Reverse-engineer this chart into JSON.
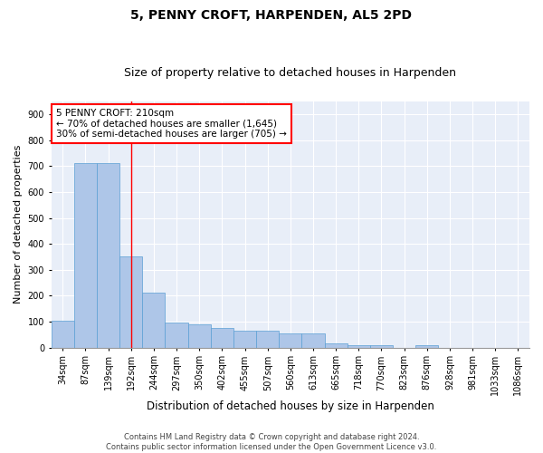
{
  "title": "5, PENNY CROFT, HARPENDEN, AL5 2PD",
  "subtitle": "Size of property relative to detached houses in Harpenden",
  "xlabel": "Distribution of detached houses by size in Harpenden",
  "ylabel": "Number of detached properties",
  "categories": [
    "34sqm",
    "87sqm",
    "139sqm",
    "192sqm",
    "244sqm",
    "297sqm",
    "350sqm",
    "402sqm",
    "455sqm",
    "507sqm",
    "560sqm",
    "613sqm",
    "665sqm",
    "718sqm",
    "770sqm",
    "823sqm",
    "876sqm",
    "928sqm",
    "981sqm",
    "1033sqm",
    "1086sqm"
  ],
  "values": [
    105,
    710,
    710,
    350,
    210,
    95,
    90,
    75,
    65,
    65,
    55,
    55,
    15,
    10,
    10,
    0,
    10,
    0,
    0,
    0,
    0
  ],
  "bar_color": "#aec6e8",
  "bar_edge_color": "#5a9fd4",
  "vline_x_index": 3,
  "vline_color": "red",
  "annotation_text": "5 PENNY CROFT: 210sqm\n← 70% of detached houses are smaller (1,645)\n30% of semi-detached houses are larger (705) →",
  "annotation_box_color": "white",
  "annotation_box_edge_color": "red",
  "ylim": [
    0,
    950
  ],
  "yticks": [
    0,
    100,
    200,
    300,
    400,
    500,
    600,
    700,
    800,
    900
  ],
  "footer_line1": "Contains HM Land Registry data © Crown copyright and database right 2024.",
  "footer_line2": "Contains public sector information licensed under the Open Government Licence v3.0.",
  "bg_color": "#e8eef8",
  "fig_bg_color": "#ffffff",
  "title_fontsize": 10,
  "subtitle_fontsize": 9,
  "annotation_fontsize": 7.5,
  "ylabel_fontsize": 8,
  "xlabel_fontsize": 8.5,
  "tick_fontsize": 7
}
